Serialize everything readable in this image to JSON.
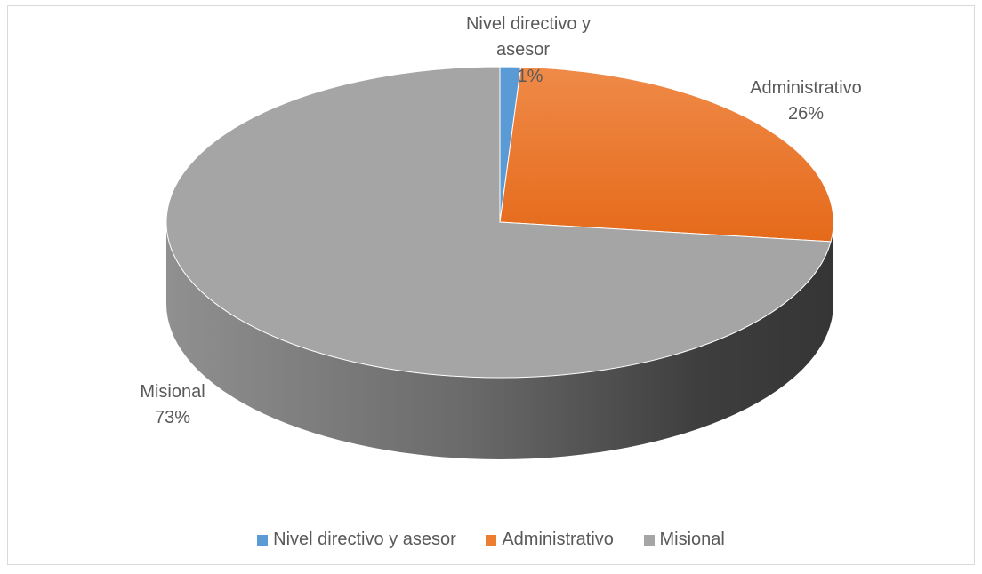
{
  "chart_data": {
    "type": "pie",
    "style": "3d",
    "title": "",
    "legend_position": "bottom",
    "slices": [
      {
        "label": "Nivel directivo y asesor",
        "value": 1,
        "value_label": "1%",
        "color": "#5b9bd5"
      },
      {
        "label": "Administrativo",
        "value": 26,
        "value_label": "26%",
        "color": "#ed7d31"
      },
      {
        "label": "Misional",
        "value": 73,
        "value_label": "73%",
        "color": "#a5a5a5"
      }
    ]
  }
}
